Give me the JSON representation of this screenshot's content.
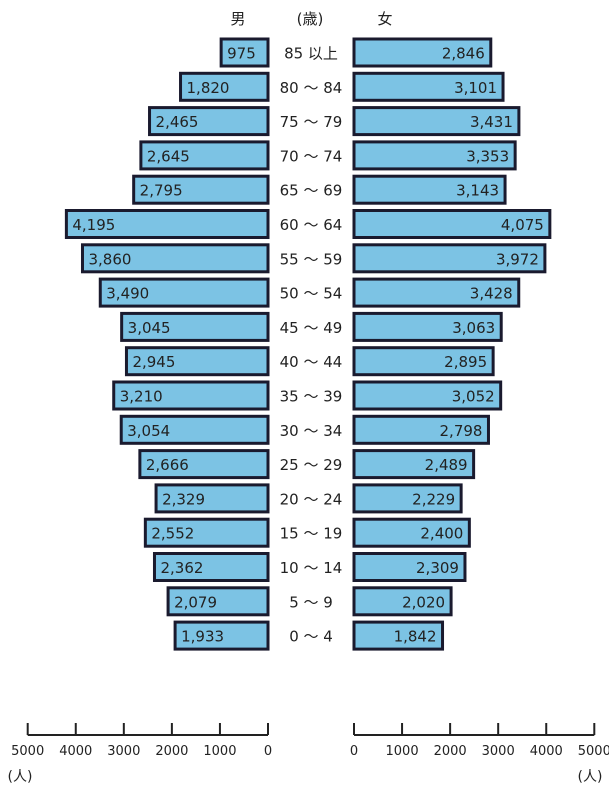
{
  "chart_data": {
    "type": "bar",
    "subtype": "population-pyramid",
    "male_label": "男",
    "female_label": "女",
    "age_unit_label": "(歳)",
    "axis_unit_label": "(人)",
    "xlim": [
      0,
      5000
    ],
    "x_ticks": [
      0,
      1000,
      2000,
      3000,
      4000,
      5000
    ],
    "categories": [
      "85 以上",
      "80 ～ 84",
      "75 ～ 79",
      "70 ～ 74",
      "65 ～ 69",
      "60 ～ 64",
      "55 ～ 59",
      "50 ～ 54",
      "45 ～ 49",
      "40 ～ 44",
      "35 ～ 39",
      "30 ～ 34",
      "25 ～ 29",
      "20 ～ 24",
      "15 ～ 19",
      "10 ～ 14",
      "5 ～ 9",
      "0 ～ 4"
    ],
    "series": [
      {
        "name": "男",
        "values": [
          975,
          1820,
          2465,
          2645,
          2795,
          4195,
          3860,
          3490,
          3045,
          2945,
          3210,
          3054,
          2666,
          2329,
          2552,
          2362,
          2079,
          1933
        ]
      },
      {
        "name": "女",
        "values": [
          2846,
          3101,
          3431,
          3353,
          3143,
          4075,
          3972,
          3428,
          3063,
          2895,
          3052,
          2798,
          2489,
          2229,
          2400,
          2309,
          2020,
          1842
        ]
      }
    ],
    "bar_color": "#7cc3e4",
    "bar_border_color": "#1a1a2e"
  }
}
